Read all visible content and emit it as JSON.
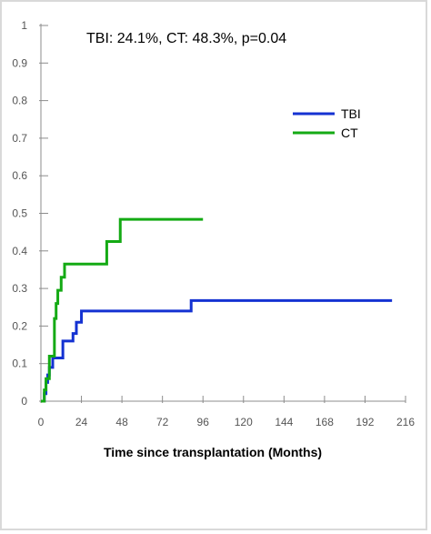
{
  "chart_data": {
    "type": "line",
    "title": "",
    "annotation": "TBI: 24.1%, CT: 48.3%, p=0.04",
    "xlabel": "Time since transplantation (Months)",
    "ylabel": "",
    "xlim": [
      0,
      216
    ],
    "ylim": [
      0,
      1
    ],
    "x_ticks": [
      "0",
      "24",
      "48",
      "72",
      "96",
      "120",
      "144",
      "168",
      "192",
      "216"
    ],
    "y_ticks": [
      "0",
      "0.1",
      "0.2",
      "0.3",
      "0.4",
      "0.5",
      "0.6",
      "0.7",
      "0.8",
      "0.9",
      "1"
    ],
    "grid": false,
    "legend_position": "top-right",
    "step": true,
    "series": [
      {
        "name": "TBI",
        "color": "#1432d2",
        "points": [
          [
            0,
            0
          ],
          [
            2,
            0.02
          ],
          [
            3,
            0.05
          ],
          [
            4,
            0.07
          ],
          [
            5,
            0.09
          ],
          [
            7,
            0.115
          ],
          [
            13,
            0.16
          ],
          [
            19,
            0.18
          ],
          [
            21,
            0.21
          ],
          [
            24,
            0.24
          ],
          [
            89,
            0.268
          ],
          [
            208,
            0.268
          ]
        ]
      },
      {
        "name": "CT",
        "color": "#14aa14",
        "points": [
          [
            0,
            0
          ],
          [
            2,
            0.03
          ],
          [
            3,
            0.06
          ],
          [
            5,
            0.12
          ],
          [
            8,
            0.22
          ],
          [
            9,
            0.26
          ],
          [
            10,
            0.295
          ],
          [
            12,
            0.33
          ],
          [
            14,
            0.365
          ],
          [
            39,
            0.425
          ],
          [
            47,
            0.484
          ],
          [
            96,
            0.484
          ]
        ]
      }
    ]
  }
}
